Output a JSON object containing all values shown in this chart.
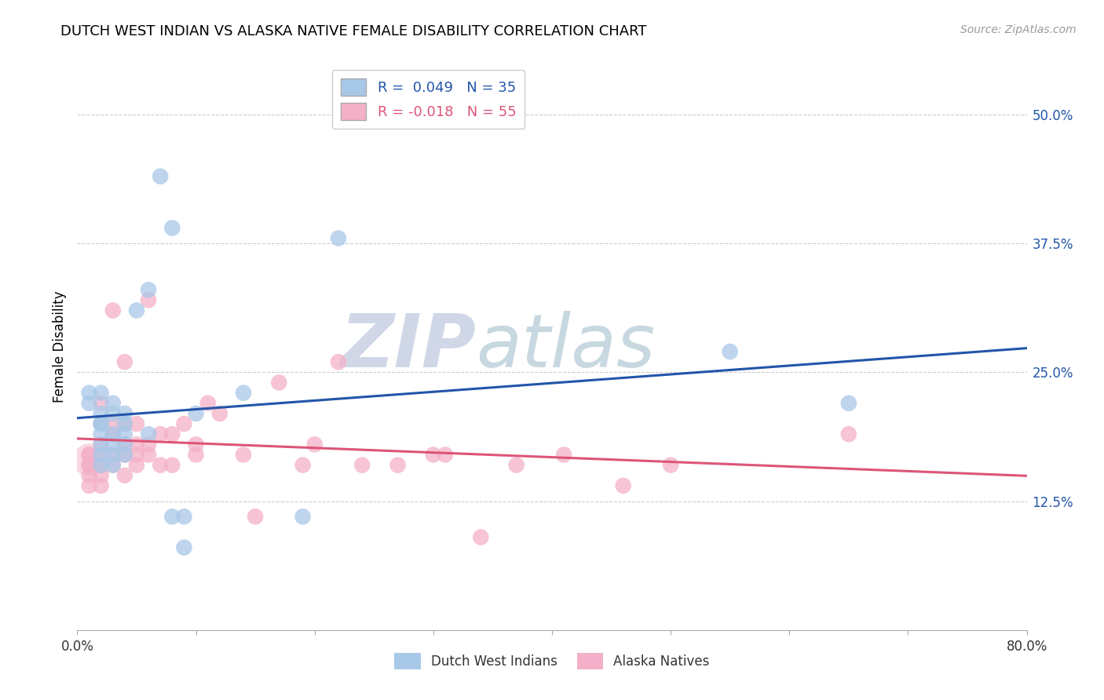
{
  "title": "DUTCH WEST INDIAN VS ALASKA NATIVE FEMALE DISABILITY CORRELATION CHART",
  "source": "Source: ZipAtlas.com",
  "ylabel": "Female Disability",
  "y_ticks": [
    0.125,
    0.25,
    0.375,
    0.5
  ],
  "y_tick_labels": [
    "12.5%",
    "25.0%",
    "37.5%",
    "50.0%"
  ],
  "x_ticks": [
    0.0,
    0.1,
    0.2,
    0.3,
    0.4,
    0.5,
    0.6,
    0.7,
    0.8
  ],
  "x_tick_labels": [
    "0.0%",
    "",
    "",
    "",
    "",
    "",
    "",
    "",
    "80.0%"
  ],
  "xlim": [
    0.0,
    0.8
  ],
  "ylim": [
    0.0,
    0.55
  ],
  "blue_R": 0.049,
  "blue_N": 35,
  "pink_R": -0.018,
  "pink_N": 55,
  "blue_color": "#a8c8e8",
  "pink_color": "#f4b0c8",
  "blue_line_color": "#2255aa",
  "pink_line_color": "#dd5577",
  "legend_blue_label": "Dutch West Indians",
  "legend_pink_label": "Alaska Natives",
  "watermark_zip": "ZIP",
  "watermark_atlas": "atlas",
  "dutch_x": [
    0.01,
    0.01,
    0.02,
    0.02,
    0.02,
    0.02,
    0.02,
    0.02,
    0.02,
    0.02,
    0.03,
    0.03,
    0.03,
    0.03,
    0.03,
    0.03,
    0.04,
    0.04,
    0.04,
    0.04,
    0.04,
    0.05,
    0.06,
    0.06,
    0.07,
    0.08,
    0.08,
    0.09,
    0.09,
    0.1,
    0.14,
    0.19,
    0.55,
    0.65,
    0.22
  ],
  "dutch_y": [
    0.23,
    0.22,
    0.21,
    0.2,
    0.2,
    0.19,
    0.18,
    0.17,
    0.23,
    0.16,
    0.22,
    0.21,
    0.19,
    0.18,
    0.17,
    0.16,
    0.21,
    0.2,
    0.19,
    0.18,
    0.17,
    0.31,
    0.33,
    0.19,
    0.44,
    0.39,
    0.11,
    0.11,
    0.08,
    0.21,
    0.23,
    0.11,
    0.27,
    0.22,
    0.38
  ],
  "alaska_x": [
    0.01,
    0.01,
    0.01,
    0.01,
    0.01,
    0.01,
    0.02,
    0.02,
    0.02,
    0.02,
    0.02,
    0.02,
    0.02,
    0.03,
    0.03,
    0.03,
    0.03,
    0.03,
    0.04,
    0.04,
    0.04,
    0.04,
    0.04,
    0.05,
    0.05,
    0.05,
    0.05,
    0.06,
    0.06,
    0.06,
    0.07,
    0.07,
    0.08,
    0.08,
    0.09,
    0.1,
    0.1,
    0.11,
    0.12,
    0.14,
    0.15,
    0.17,
    0.19,
    0.2,
    0.22,
    0.24,
    0.27,
    0.3,
    0.31,
    0.34,
    0.37,
    0.41,
    0.46,
    0.5,
    0.65
  ],
  "alaska_y": [
    0.17,
    0.17,
    0.16,
    0.16,
    0.15,
    0.14,
    0.22,
    0.2,
    0.18,
    0.17,
    0.16,
    0.15,
    0.14,
    0.31,
    0.2,
    0.19,
    0.17,
    0.16,
    0.26,
    0.2,
    0.18,
    0.17,
    0.15,
    0.2,
    0.18,
    0.17,
    0.16,
    0.32,
    0.18,
    0.17,
    0.19,
    0.16,
    0.19,
    0.16,
    0.2,
    0.18,
    0.17,
    0.22,
    0.21,
    0.17,
    0.11,
    0.24,
    0.16,
    0.18,
    0.26,
    0.16,
    0.16,
    0.17,
    0.17,
    0.09,
    0.16,
    0.17,
    0.14,
    0.16,
    0.19
  ]
}
